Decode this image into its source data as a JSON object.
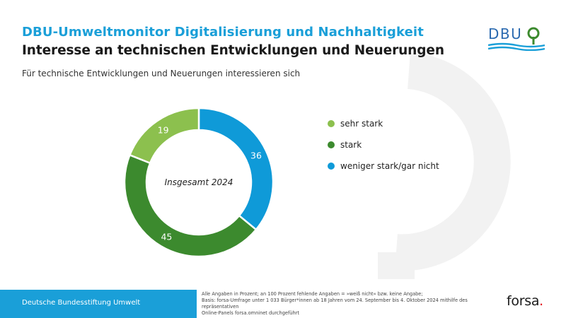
{
  "header": {
    "supertitle": "DBU-Umweltmonitor Digitalisierung und Nachhaltigkeit",
    "title": "Interesse an technischen Entwicklungen und Neuerungen",
    "subtitle": "Für technische Entwicklungen und Neuerungen interessieren sich"
  },
  "logo": {
    "text": "DBU"
  },
  "chart_data": {
    "type": "pie",
    "donut": true,
    "center_label": "Insgesamt 2024",
    "categories": [
      "weniger stark/gar nicht",
      "stark",
      "sehr stark"
    ],
    "values": [
      36,
      45,
      19
    ],
    "labels": [
      "36",
      "45",
      "19"
    ],
    "colors": [
      "#0f9ad8",
      "#3c8a2e",
      "#8cc04e"
    ],
    "legend_position": "right",
    "legend": [
      {
        "label": "sehr stark",
        "color": "#8cc04e"
      },
      {
        "label": "stark",
        "color": "#3c8a2e"
      },
      {
        "label": "weniger stark/gar nicht",
        "color": "#0f9ad8"
      }
    ]
  },
  "footer": {
    "org": "Deutsche Bundesstiftung Umwelt",
    "note1": "Alle Angaben in Prozent; an 100 Prozent fehlende Angaben = »weiß nicht« bzw. keine Angabe;",
    "note2": "Basis: forsa-Umfrage unter 1 033 Bürger*innen ab 18 Jahren vom 24. September bis 4. Oktober 2024 mithilfe des repräsentativen",
    "note3": "Online-Panels forsa.omninet durchgeführt",
    "brand": "forsa",
    "brand_dot": "."
  }
}
